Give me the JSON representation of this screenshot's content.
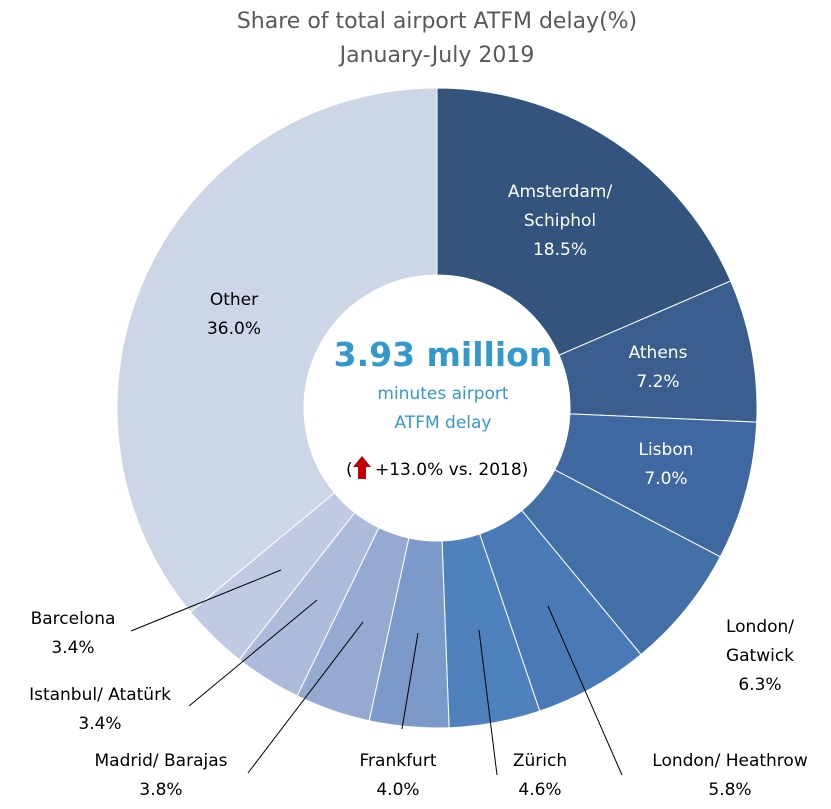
{
  "chart_data": {
    "type": "pie",
    "title": "Share of total airport ATFM delay(%)",
    "subtitle": "January-July 2019",
    "unit": "%",
    "slices": [
      {
        "name": "Amsterdam/ Schiphol",
        "lines": [
          "Amsterdam/",
          "Schiphol"
        ],
        "value": 18.5,
        "label": "18.5%",
        "color": "#33547d",
        "label_inside": true
      },
      {
        "name": "Athens",
        "lines": [
          "Athens"
        ],
        "value": 7.2,
        "label": "7.2%",
        "color": "#3a5f8e",
        "label_inside": true
      },
      {
        "name": "Lisbon",
        "lines": [
          "Lisbon"
        ],
        "value": 7.0,
        "label": "7.0%",
        "color": "#3f68a0",
        "label_inside": true
      },
      {
        "name": "London/ Gatwick",
        "lines": [
          "London/",
          "Gatwick"
        ],
        "value": 6.3,
        "label": "6.3%",
        "color": "#4470a8",
        "label_inside": false
      },
      {
        "name": "London/ Heathrow",
        "lines": [
          "London/ Heathrow"
        ],
        "value": 5.8,
        "label": "5.8%",
        "color": "#4a7ab5",
        "label_inside": false
      },
      {
        "name": "Zürich",
        "lines": [
          "Zürich"
        ],
        "value": 4.6,
        "label": "4.6%",
        "color": "#4f81bd",
        "label_inside": false
      },
      {
        "name": "Frankfurt",
        "lines": [
          "Frankfurt"
        ],
        "value": 4.0,
        "label": "4.0%",
        "color": "#7c9ac9",
        "label_inside": false
      },
      {
        "name": "Madrid/ Barajas",
        "lines": [
          "Madrid/ Barajas"
        ],
        "value": 3.8,
        "label": "3.8%",
        "color": "#95a9d1",
        "label_inside": false
      },
      {
        "name": "Istanbul/ Atatürk",
        "lines": [
          "Istanbul/ Atatürk"
        ],
        "value": 3.4,
        "label": "3.4%",
        "color": "#adbbdb",
        "label_inside": false
      },
      {
        "name": "Barcelona",
        "lines": [
          "Barcelona"
        ],
        "value": 3.4,
        "label": "3.4%",
        "color": "#c0cbe3",
        "label_inside": false
      },
      {
        "name": "Other",
        "lines": [
          "Other"
        ],
        "value": 36.0,
        "label": "36.0%",
        "color": "#ccd6e6",
        "label_inside": true
      }
    ],
    "center": {
      "headline": "3.93 million",
      "sub_line1": "minutes airport",
      "sub_line2": "ATFM delay",
      "change_prefix": "(",
      "change_text": "+13.0% vs. 2018)",
      "change_icon": "up-arrow-icon",
      "headline_color": "#3399cc",
      "arrow_color": "#c00000"
    }
  }
}
